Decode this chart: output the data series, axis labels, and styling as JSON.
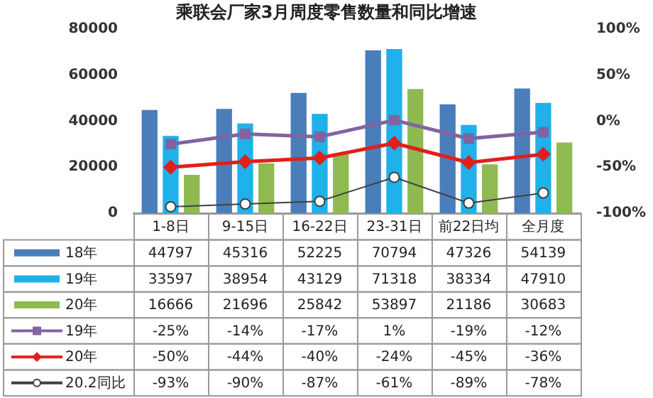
{
  "chart_data": {
    "type": "bar",
    "title": "乘联会厂家3月周度零售数量和同比增速",
    "categories": [
      "1-8日",
      "9-15日",
      "16-22日",
      "23-31日",
      "前22日均",
      "全月度"
    ],
    "series": [
      {
        "name": "18年",
        "color": "#4a7ebb",
        "values": [
          44797,
          45316,
          52225,
          70794,
          47326,
          54139
        ]
      },
      {
        "name": "19年",
        "color": "#1fb1ea",
        "values": [
          33597,
          38954,
          43129,
          71318,
          38334,
          47910
        ]
      },
      {
        "name": "20年",
        "color": "#8fba52",
        "values": [
          16666,
          21696,
          25842,
          53897,
          21186,
          30683
        ]
      },
      {
        "name": "19年",
        "type": "line",
        "axis": "y2",
        "marker": "square",
        "color": "#8064a2",
        "values": [
          -25,
          -14,
          -17,
          1,
          -19,
          -12
        ],
        "value_labels": [
          "-25%",
          "-14%",
          "-17%",
          "1%",
          "-19%",
          "-12%"
        ]
      },
      {
        "name": "20年",
        "type": "line",
        "axis": "y2",
        "marker": "diamond",
        "color": "#e0201b",
        "values": [
          -50,
          -44,
          -40,
          -24,
          -45,
          -36
        ],
        "value_labels": [
          "-50%",
          "-44%",
          "-40%",
          "-24%",
          "-45%",
          "-36%"
        ]
      },
      {
        "name": "20.2同比",
        "type": "line",
        "axis": "y2",
        "marker": "circle",
        "color": "#404040",
        "values": [
          -93,
          -90,
          -87,
          -61,
          -89,
          -78
        ],
        "value_labels": [
          "-93%",
          "-90%",
          "-87%",
          "-61%",
          "-89%",
          "-78%"
        ]
      }
    ],
    "ylim": [
      0,
      80000
    ],
    "yticks": [
      0,
      20000,
      40000,
      60000,
      80000
    ],
    "y2lim": [
      -100,
      100
    ],
    "y2ticks": [
      {
        "value": -100,
        "label": "-100%"
      },
      {
        "value": -50,
        "label": "-50%"
      },
      {
        "value": 0,
        "label": "0%"
      },
      {
        "value": 50,
        "label": "50%"
      },
      {
        "value": 100,
        "label": "100%"
      }
    ],
    "legend": "bottom",
    "data_labels": true
  }
}
